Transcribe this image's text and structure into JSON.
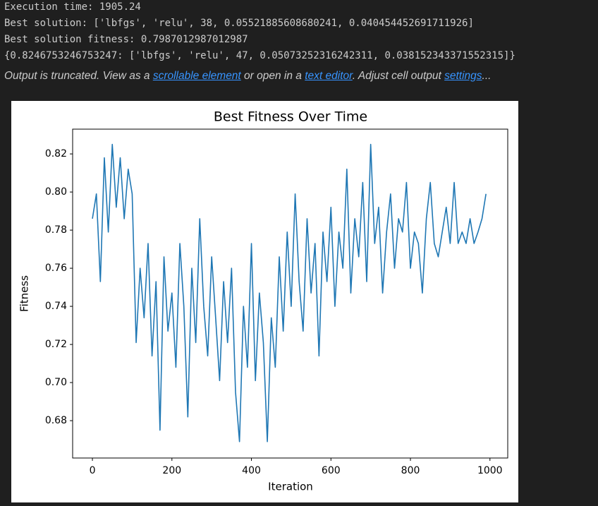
{
  "output": {
    "lines": [
      "Execution time: 1905.24",
      "Best solution: ['lbfgs', 'relu', 38, 0.05521885608680241, 0.040454452691711926]",
      "Best solution fitness: 0.7987012987012987",
      "{0.8246753246753247: ['lbfgs', 'relu', 47, 0.05073252316242311, 0.038152343371552315]}"
    ],
    "notice": {
      "text1": "Output is truncated. View as a ",
      "link1": "scrollable element",
      "text2": " or open in a ",
      "link2": "text editor",
      "text3": ". Adjust cell output ",
      "link3": "settings",
      "text4": "..."
    }
  },
  "chart_data": {
    "type": "line",
    "title": "Best Fitness Over Time",
    "xlabel": "Iteration",
    "ylabel": "Fitness",
    "color": "#1f77b4",
    "x": [
      0,
      10,
      20,
      30,
      40,
      50,
      60,
      70,
      80,
      90,
      100,
      110,
      120,
      130,
      140,
      150,
      160,
      170,
      180,
      190,
      200,
      210,
      220,
      230,
      240,
      250,
      260,
      270,
      280,
      290,
      300,
      310,
      320,
      330,
      340,
      350,
      360,
      370,
      380,
      390,
      400,
      410,
      420,
      430,
      440,
      450,
      460,
      470,
      480,
      490,
      500,
      510,
      520,
      530,
      540,
      550,
      560,
      570,
      580,
      590,
      600,
      610,
      620,
      630,
      640,
      650,
      660,
      670,
      680,
      690,
      700,
      710,
      720,
      730,
      740,
      750,
      760,
      770,
      780,
      790,
      800,
      810,
      820,
      830,
      840,
      850,
      860,
      870,
      880,
      890,
      900,
      910,
      920,
      930,
      940,
      950,
      960,
      970,
      980,
      990
    ],
    "values": [
      0.786,
      0.799,
      0.753,
      0.818,
      0.779,
      0.825,
      0.792,
      0.818,
      0.786,
      0.812,
      0.799,
      0.721,
      0.76,
      0.734,
      0.773,
      0.714,
      0.753,
      0.675,
      0.766,
      0.727,
      0.747,
      0.708,
      0.773,
      0.74,
      0.682,
      0.76,
      0.721,
      0.786,
      0.74,
      0.714,
      0.766,
      0.734,
      0.701,
      0.753,
      0.721,
      0.76,
      0.695,
      0.669,
      0.74,
      0.708,
      0.773,
      0.701,
      0.747,
      0.721,
      0.669,
      0.734,
      0.708,
      0.766,
      0.727,
      0.779,
      0.74,
      0.799,
      0.753,
      0.727,
      0.786,
      0.747,
      0.773,
      0.714,
      0.779,
      0.753,
      0.792,
      0.74,
      0.779,
      0.76,
      0.812,
      0.747,
      0.786,
      0.766,
      0.805,
      0.753,
      0.825,
      0.773,
      0.792,
      0.747,
      0.779,
      0.799,
      0.76,
      0.786,
      0.779,
      0.805,
      0.76,
      0.779,
      0.773,
      0.747,
      0.786,
      0.805,
      0.773,
      0.766,
      0.779,
      0.792,
      0.773,
      0.805,
      0.773,
      0.779,
      0.773,
      0.786,
      0.773,
      0.779,
      0.786,
      0.799
    ],
    "xlim": [
      -49.75,
      1044.75
    ],
    "ylim": [
      0.6604,
      0.833
    ],
    "xticks": [
      0,
      200,
      400,
      600,
      800,
      1000
    ],
    "yticks": [
      0.68,
      {
        "value": 0.7,
        "label": "0.70"
      },
      0.72,
      0.74,
      0.76,
      0.78,
      {
        "value": 0.8,
        "label": "0.80"
      },
      0.82
    ]
  }
}
